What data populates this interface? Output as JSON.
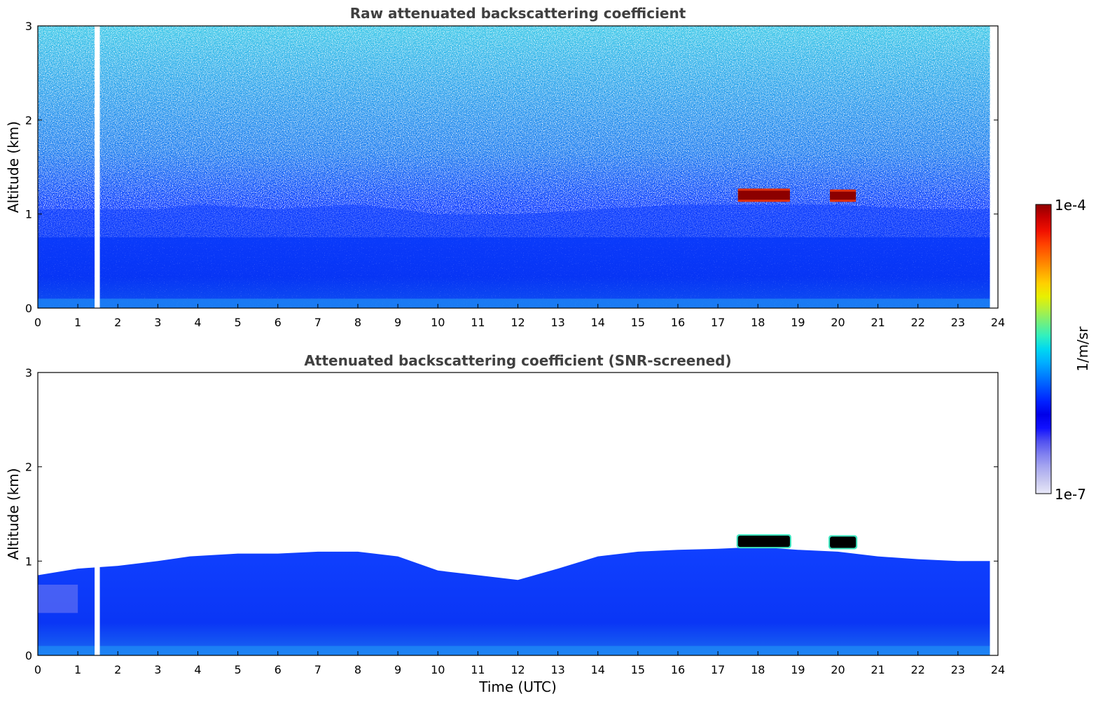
{
  "figure": {
    "colorbar": {
      "label": "1/m/sr",
      "max_label": "1e-4",
      "min_label": "1e-7",
      "colors": [
        "#e8e8f8",
        "#c8c8f0",
        "#a8a8f0",
        "#8080f0",
        "#5050f0",
        "#1010ff",
        "#0000e8",
        "#0020ff",
        "#0050ff",
        "#0080ff",
        "#00b0ff",
        "#00d8f0",
        "#30f0c0",
        "#70f080",
        "#b0f040",
        "#e8f000",
        "#ffd000",
        "#ffa000",
        "#ff7000",
        "#ff4000",
        "#f01000",
        "#c80000",
        "#900000"
      ]
    },
    "time_axis": {
      "xlabel": "Time (UTC)",
      "xlim": [
        0,
        24
      ],
      "ticks": [
        "0",
        "1",
        "2",
        "3",
        "4",
        "5",
        "6",
        "7",
        "8",
        "9",
        "10",
        "11",
        "12",
        "13",
        "14",
        "15",
        "16",
        "17",
        "18",
        "19",
        "20",
        "21",
        "22",
        "23",
        "24"
      ]
    },
    "altitude_axis": {
      "ylabel": "Altitude (km)",
      "ylim": [
        0,
        3
      ],
      "ticks": [
        "0",
        "1",
        "2",
        "3"
      ]
    }
  },
  "chart_data": [
    {
      "type": "heatmap",
      "title": "Raw attenuated backscattering coefficient",
      "ylabel": "Altitude (km)",
      "xlabel": "",
      "xlim": [
        0,
        24
      ],
      "ylim": [
        0,
        3
      ],
      "color_scale": "log",
      "clim": [
        "1e-7",
        "1e-4"
      ],
      "data_gap_x": [
        1.42,
        1.55
      ],
      "data_end_x": 23.8,
      "noise_top_y": 3.0,
      "boundary_layer": [
        [
          0,
          1.05
        ],
        [
          1,
          1.05
        ],
        [
          3,
          1.05
        ],
        [
          4,
          1.1
        ],
        [
          6,
          1.05
        ],
        [
          8,
          1.1
        ],
        [
          10,
          1.0
        ],
        [
          12,
          1.0
        ],
        [
          14,
          1.05
        ],
        [
          16,
          1.1
        ],
        [
          18,
          1.1
        ],
        [
          20,
          1.1
        ],
        [
          22,
          1.05
        ],
        [
          23.8,
          1.05
        ]
      ],
      "cloud_features": [
        {
          "x_start": 17.5,
          "x_end": 18.8,
          "y_bottom": 1.13,
          "y_top": 1.27
        },
        {
          "x_start": 19.8,
          "x_end": 20.45,
          "y_bottom": 1.13,
          "y_top": 1.26
        }
      ]
    },
    {
      "type": "heatmap",
      "title": "Attenuated backscattering coefficient (SNR-screened)",
      "ylabel": "Altitude (km)",
      "xlabel": "Time (UTC)",
      "xlim": [
        0,
        24
      ],
      "ylim": [
        0,
        3
      ],
      "color_scale": "log",
      "clim": [
        "1e-7",
        "1e-4"
      ],
      "data_gap_x": [
        1.42,
        1.55
      ],
      "data_end_x": 23.8,
      "boundary_layer": [
        [
          0,
          0.85
        ],
        [
          1,
          0.92
        ],
        [
          2,
          0.95
        ],
        [
          3,
          1.0
        ],
        [
          3.8,
          1.05
        ],
        [
          5,
          1.08
        ],
        [
          6,
          1.08
        ],
        [
          7,
          1.1
        ],
        [
          8,
          1.1
        ],
        [
          9,
          1.05
        ],
        [
          10,
          0.9
        ],
        [
          11,
          0.85
        ],
        [
          12,
          0.8
        ],
        [
          13,
          0.92
        ],
        [
          14,
          1.05
        ],
        [
          15,
          1.1
        ],
        [
          16,
          1.12
        ],
        [
          17,
          1.13
        ],
        [
          18,
          1.15
        ],
        [
          19,
          1.12
        ],
        [
          20,
          1.1
        ],
        [
          21,
          1.05
        ],
        [
          22,
          1.02
        ],
        [
          23,
          1.0
        ],
        [
          23.8,
          1.0
        ]
      ],
      "cloud_features": [
        {
          "x_start": 17.5,
          "x_end": 18.8,
          "y_bottom": 1.15,
          "y_top": 1.27
        },
        {
          "x_start": 19.8,
          "x_end": 20.45,
          "y_bottom": 1.14,
          "y_top": 1.26
        }
      ]
    }
  ]
}
